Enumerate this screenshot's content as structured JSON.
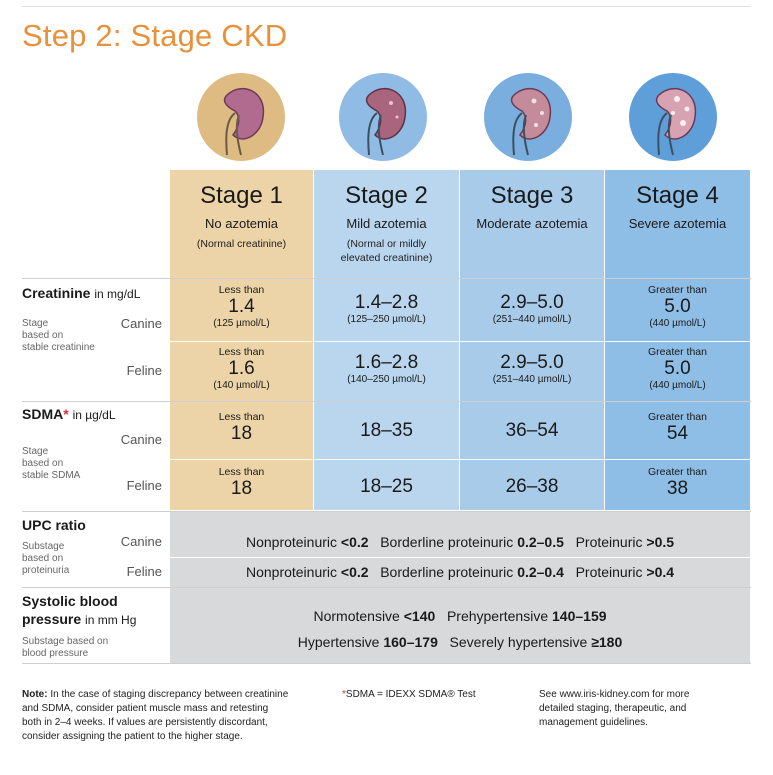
{
  "title": "Step 2: Stage CKD",
  "stages": [
    {
      "name": "Stage 1",
      "desc": "No azotemia",
      "paren": "(Normal creatinine)",
      "icon": "kidney-normal-icon",
      "color": "#ecd4a8"
    },
    {
      "name": "Stage 2",
      "desc": "Mild azotemia",
      "paren": "(Normal or mildly elevated creatinine)",
      "icon": "kidney-mild-icon",
      "color": "#b9d6ee"
    },
    {
      "name": "Stage 3",
      "desc": "Moderate azotemia",
      "paren": "",
      "icon": "kidney-moderate-icon",
      "color": "#a9cbea"
    },
    {
      "name": "Stage 4",
      "desc": "Severe azotemia",
      "paren": "",
      "icon": "kidney-severe-icon",
      "color": "#8ebde6"
    }
  ],
  "creatinine": {
    "title": "Creatinine",
    "unit": "in mg/dL",
    "note_stage": "Stage",
    "note_based": "based on",
    "note_stable": "stable creatinine",
    "canine_label": "Canine",
    "feline_label": "Feline",
    "canine": [
      {
        "pre": "Less than",
        "val": "1.4",
        "sub": "(125 µmol/L)"
      },
      {
        "pre": "",
        "val": "1.4–2.8",
        "sub": "(125–250 µmol/L)"
      },
      {
        "pre": "",
        "val": "2.9–5.0",
        "sub": "(251–440 µmol/L)"
      },
      {
        "pre": "Greater than",
        "val": "5.0",
        "sub": "(440 µmol/L)"
      }
    ],
    "feline": [
      {
        "pre": "Less than",
        "val": "1.6",
        "sub": "(140 µmol/L)"
      },
      {
        "pre": "",
        "val": "1.6–2.8",
        "sub": "(140–250 µmol/L)"
      },
      {
        "pre": "",
        "val": "2.9–5.0",
        "sub": "(251–440 µmol/L)"
      },
      {
        "pre": "Greater than",
        "val": "5.0",
        "sub": "(440 µmol/L)"
      }
    ]
  },
  "sdma": {
    "title": "SDMA",
    "star": "*",
    "unit": "in µg/dL",
    "note_stage": "Stage",
    "note_based": "based on",
    "note_stable": "stable SDMA",
    "canine_label": "Canine",
    "feline_label": "Feline",
    "canine": [
      {
        "pre": "Less than",
        "val": "18"
      },
      {
        "pre": "",
        "val": "18–35"
      },
      {
        "pre": "",
        "val": "36–54"
      },
      {
        "pre": "Greater than",
        "val": "54"
      }
    ],
    "feline": [
      {
        "pre": "Less than",
        "val": "18"
      },
      {
        "pre": "",
        "val": "18–25"
      },
      {
        "pre": "",
        "val": "26–38"
      },
      {
        "pre": "Greater than",
        "val": "38"
      }
    ]
  },
  "upc": {
    "title": "UPC ratio",
    "note1": "Substage",
    "note2": "based on",
    "note3": "proteinuria",
    "canine_label": "Canine",
    "feline_label": "Feline",
    "canine": {
      "a": "Nonproteinuric ",
      "av": "<0.2",
      "b": "Borderline proteinuric ",
      "bv": "0.2–0.5",
      "c": "Proteinuric ",
      "cv": ">0.5"
    },
    "feline": {
      "a": "Nonproteinuric ",
      "av": "<0.2",
      "b": "Borderline proteinuric ",
      "bv": "0.2–0.4",
      "c": "Proteinuric ",
      "cv": ">0.4"
    }
  },
  "bp": {
    "title1": "Systolic blood",
    "title2": "pressure",
    "unit": "in mm Hg",
    "note1": "Substage based on",
    "note2": "blood pressure",
    "line1": {
      "a": "Normotensive ",
      "av": "<140",
      "b": "Prehypertensive ",
      "bv": "140–159"
    },
    "line2": {
      "a": "Hypertensive ",
      "av": "160–179",
      "b": "Severely hypertensive ",
      "bv": "≥180"
    }
  },
  "footer": {
    "note_label": "Note:",
    "note_l1": " In the case of staging discrepancy between creatinine",
    "note_l2": "and SDMA, consider patient muscle mass and retesting",
    "note_l3": "both in 2–4 weeks. If values are persistently discordant,",
    "note_l4": "consider assigning the patient to the higher stage.",
    "sdma_star": "*",
    "sdma_text": "SDMA = IDEXX SDMA® Test",
    "see_l1": "See www.iris-kidney.com for more",
    "see_l2": "detailed staging, therapeutic, and",
    "see_l3": "management guidelines."
  }
}
